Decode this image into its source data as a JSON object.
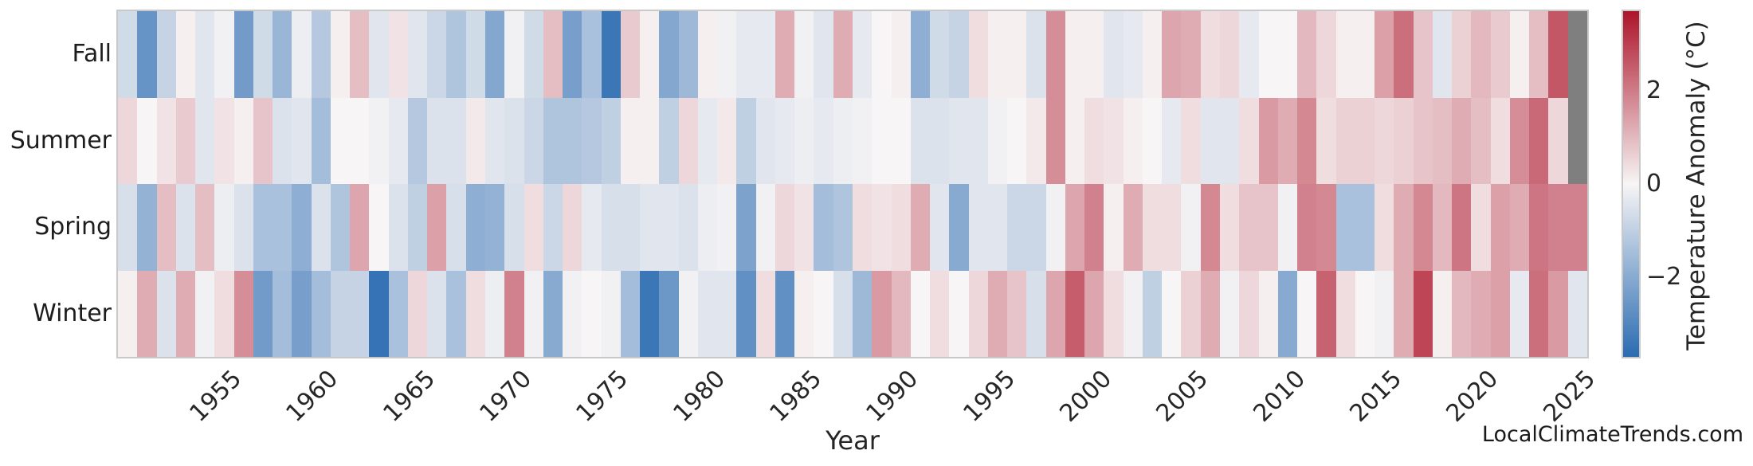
{
  "watermark": "LocalClimateTrends.com",
  "chart_data": {
    "type": "heatmap",
    "title": "",
    "xlabel": "Year",
    "ylabel": "",
    "legend_position": "right-colorbar",
    "grid": false,
    "rows": [
      "Fall",
      "Summer",
      "Spring",
      "Winter"
    ],
    "years": {
      "start": 1950,
      "end": 2025
    },
    "x_ticks": [
      "1955",
      "1960",
      "1965",
      "1970",
      "1975",
      "1980",
      "1985",
      "1990",
      "1995",
      "2000",
      "2005",
      "2010",
      "2015",
      "2020",
      "2025"
    ],
    "colorbar": {
      "label": "Temperature Anomaly (°C)",
      "ticks": [
        "2",
        "0",
        "−2"
      ],
      "tick_values": [
        2,
        0,
        -2
      ],
      "vmin": -3.7,
      "vmax": 3.7,
      "positive_color": "#ad142a",
      "zero_color": "#f7f5f5",
      "negative_color": "#2a6bb2",
      "nan_color": "#7f7f7f",
      "frame_color": "#c9c9c9"
    },
    "series": [
      {
        "name": "Fall",
        "values": [
          -0.7,
          -2.6,
          -0.9,
          0.1,
          -0.4,
          -0.1,
          -2.4,
          -0.7,
          -1.7,
          -0.2,
          -1.2,
          0.1,
          0.9,
          -0.4,
          0.3,
          -0.4,
          -0.8,
          -1.3,
          -0.7,
          -2.1,
          -0.1,
          -0.7,
          0.9,
          -2.3,
          -1.4,
          -3.4,
          0.7,
          0.1,
          -2.1,
          -1.6,
          0.1,
          -0.1,
          -0.3,
          -0.3,
          1.2,
          -0.1,
          -0.4,
          1.2,
          -0.3,
          0.0,
          0.1,
          -1.9,
          -0.7,
          -0.9,
          0.4,
          0.1,
          0.1,
          -0.5,
          1.7,
          0.1,
          0.1,
          -0.4,
          -0.3,
          0.1,
          1.3,
          1.2,
          0.4,
          0.5,
          -0.3,
          0.0,
          0.0,
          1.0,
          0.5,
          0.1,
          0.1,
          1.4,
          2.2,
          0.8,
          -0.4,
          0.6,
          1.0,
          0.7,
          0.1,
          0.9,
          2.6,
          null
        ]
      },
      {
        "name": "Summer",
        "values": [
          0.5,
          0.0,
          0.3,
          0.7,
          -0.4,
          0.3,
          0.1,
          0.8,
          -0.5,
          -0.4,
          -1.5,
          0.0,
          0.0,
          -0.1,
          -0.3,
          -1.2,
          -0.5,
          -0.5,
          0.2,
          -0.4,
          -0.5,
          -0.8,
          -1.3,
          -1.3,
          -1.2,
          -1.0,
          0.1,
          0.1,
          -1.0,
          0.5,
          -0.3,
          0.2,
          -1.0,
          -0.4,
          -0.3,
          -0.2,
          -0.3,
          -0.2,
          -0.1,
          0.0,
          0.0,
          -0.5,
          -0.5,
          -0.4,
          -0.4,
          -0.1,
          0.0,
          0.2,
          1.7,
          0.1,
          0.4,
          0.3,
          0.1,
          0.0,
          -0.3,
          0.4,
          -0.4,
          -0.4,
          0.4,
          1.5,
          1.2,
          1.8,
          0.4,
          0.6,
          0.6,
          0.5,
          0.6,
          0.8,
          0.9,
          1.2,
          0.9,
          0.4,
          1.7,
          2.3,
          0.5,
          null
        ]
      },
      {
        "name": "Spring",
        "values": [
          -0.6,
          -1.8,
          0.9,
          -0.5,
          0.9,
          -0.2,
          -0.5,
          -1.4,
          -1.4,
          -1.9,
          -0.5,
          -1.3,
          1.3,
          0.0,
          -0.5,
          -1.0,
          1.4,
          -0.6,
          -1.9,
          -1.8,
          -0.6,
          0.4,
          -0.8,
          0.5,
          -0.3,
          -0.6,
          -0.6,
          -0.4,
          -0.4,
          -0.5,
          -0.2,
          -0.1,
          -2.2,
          -0.1,
          0.5,
          0.3,
          -1.5,
          -1.3,
          0.4,
          0.3,
          0.4,
          1.2,
          -0.4,
          -2.0,
          -0.4,
          -0.4,
          -0.8,
          -0.8,
          -0.1,
          1.3,
          1.9,
          0.1,
          1.2,
          0.4,
          0.4,
          -0.1,
          1.8,
          0.4,
          0.8,
          0.8,
          -0.1,
          1.9,
          1.8,
          -1.4,
          -1.4,
          0.4,
          1.2,
          1.8,
          1.0,
          2.1,
          0.4,
          1.4,
          1.2,
          2.1,
          1.9,
          1.9
        ]
      },
      {
        "name": "Winter",
        "values": [
          0.1,
          1.2,
          -0.5,
          1.2,
          -0.1,
          0.4,
          1.7,
          -2.4,
          -1.5,
          -2.3,
          -1.5,
          -0.9,
          -0.9,
          -3.5,
          -1.4,
          0.5,
          -0.5,
          -1.4,
          0.4,
          -0.2,
          1.9,
          -0.1,
          -2.0,
          -0.1,
          0.0,
          -0.1,
          -1.5,
          -3.4,
          -2.5,
          -0.1,
          -0.4,
          -0.4,
          -2.7,
          0.4,
          -2.7,
          0.1,
          0.0,
          -0.6,
          -1.6,
          1.5,
          1.0,
          0.0,
          0.4,
          0.0,
          0.5,
          1.2,
          0.8,
          -0.6,
          1.3,
          2.5,
          1.3,
          0.4,
          -0.1,
          -1.0,
          0.0,
          0.6,
          1.2,
          -0.1,
          0.5,
          0.1,
          -2.0,
          0.0,
          2.4,
          0.4,
          0.0,
          -0.1,
          1.2,
          2.9,
          0.1,
          1.0,
          1.2,
          1.4,
          -0.3,
          2.2,
          1.5,
          -0.4
        ]
      }
    ]
  }
}
